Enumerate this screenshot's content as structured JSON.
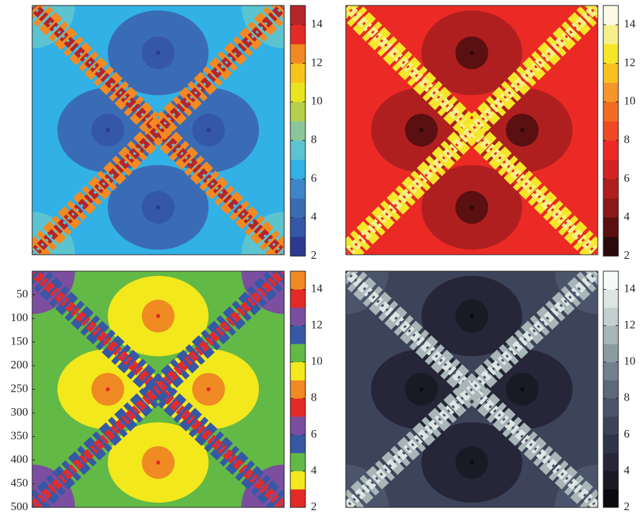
{
  "chart_data": [
    {
      "type": "heatmap",
      "clim": [
        2,
        15
      ],
      "cticks": [
        2,
        4,
        6,
        8,
        10,
        12,
        14
      ],
      "colors": [
        "#2b3990",
        "#3457a8",
        "#3a6cb5",
        "#3c86c9",
        "#31b1e6",
        "#5bc4d0",
        "#8bc69a",
        "#b4cf4a",
        "#e8e41e",
        "#f9c31d",
        "#f18a22",
        "#e42a26",
        "#b5242b"
      ]
    },
    {
      "type": "heatmap",
      "clim": [
        2,
        15
      ],
      "cticks": [
        2,
        4,
        6,
        8,
        10,
        12,
        14
      ],
      "colors": [
        "#2a0a0a",
        "#5a0f10",
        "#8a1a1a",
        "#b01f1f",
        "#d42323",
        "#ec2a25",
        "#ef4a24",
        "#f26d22",
        "#f6952a",
        "#f7c220",
        "#f5e62a",
        "#f7f08a",
        "#fdfbe6"
      ]
    },
    {
      "type": "heatmap",
      "clim": [
        2,
        15
      ],
      "cticks": [
        2,
        4,
        6,
        8,
        10,
        12,
        14
      ],
      "colors": [
        "#e42a26",
        "#f2e81c",
        "#62b946",
        "#3658a6",
        "#7b4ea0",
        "#e42a26",
        "#f08a23",
        "#f2e81c",
        "#62b946",
        "#3658a6",
        "#7b4ea0",
        "#e42a26",
        "#f08a23"
      ],
      "ylim": [
        0,
        500
      ],
      "y_inverted": true,
      "yticks": [
        50,
        100,
        150,
        200,
        250,
        300,
        350,
        400,
        450,
        500
      ]
    },
    {
      "type": "heatmap",
      "clim": [
        2,
        15
      ],
      "cticks": [
        2,
        4,
        6,
        8,
        10,
        12,
        14
      ],
      "colors": [
        "#0a0a0f",
        "#1a1a26",
        "#262638",
        "#30344a",
        "#3d4359",
        "#4b546a",
        "#5d687a",
        "#74808d",
        "#8d9aa2",
        "#a8b6b8",
        "#c3d0cf",
        "#dde6e3",
        "#f6faf8"
      ]
    }
  ]
}
